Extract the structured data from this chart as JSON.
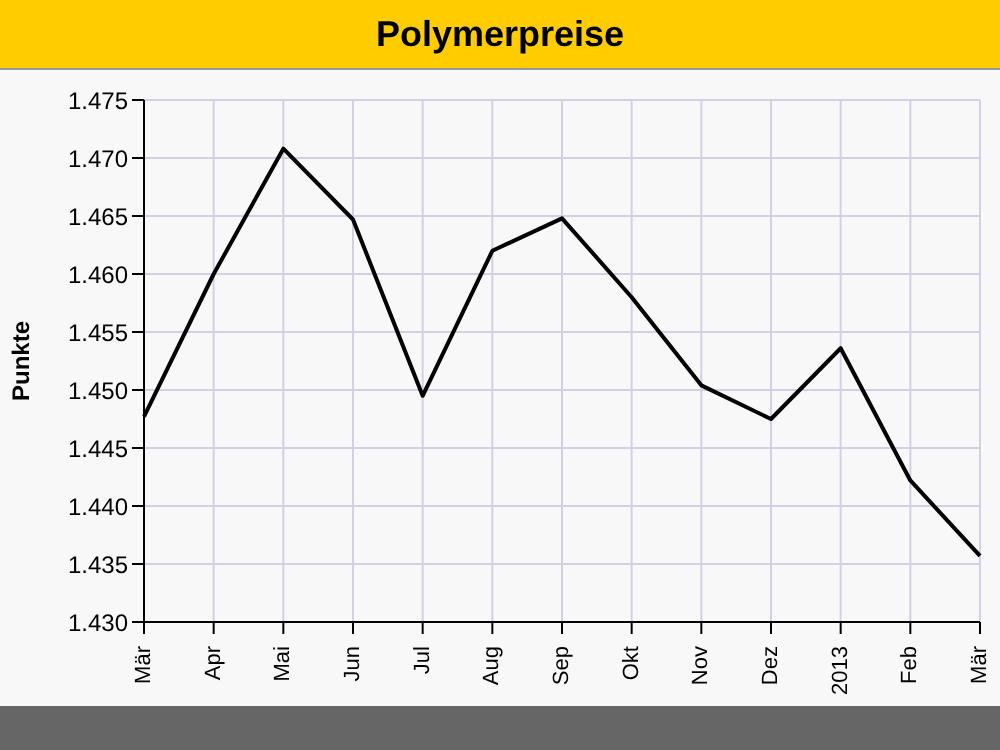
{
  "chart_data": {
    "type": "line",
    "title": "Polymerpreise",
    "ylabel": "Punkte",
    "categories": [
      "Mär",
      "Apr",
      "Mai",
      "Jun",
      "Jul",
      "Aug",
      "Sep",
      "Okt",
      "Nov",
      "Dez",
      "2013",
      "Feb",
      "Mär"
    ],
    "series": [
      {
        "color": "#000000",
        "values": [
          1447.7,
          1460,
          1470.8,
          1464.7,
          1449.5,
          1462,
          1464.8,
          1458,
          1450.4,
          1447.5,
          1453.6,
          1442.2,
          1435.7
        ]
      }
    ],
    "ylim": [
      1430,
      1475
    ],
    "yticks": [
      {
        "value": 1430,
        "label": "1.430"
      },
      {
        "value": 1435,
        "label": "1.435"
      },
      {
        "value": 1440,
        "label": "1.440"
      },
      {
        "value": 1445,
        "label": "1.445"
      },
      {
        "value": 1450,
        "label": "1.450"
      },
      {
        "value": 1455,
        "label": "1.455"
      },
      {
        "value": 1460,
        "label": "1.460"
      },
      {
        "value": 1465,
        "label": "1.465"
      },
      {
        "value": 1470,
        "label": "1.470"
      },
      {
        "value": 1475,
        "label": "1.475"
      }
    ],
    "grid": true,
    "marker": "none",
    "line_style": "solid"
  }
}
